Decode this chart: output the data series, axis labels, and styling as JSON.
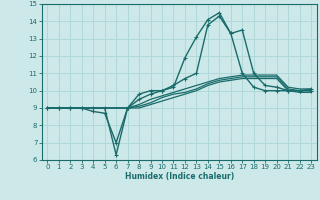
{
  "xlabel": "Humidex (Indice chaleur)",
  "xlim": [
    -0.5,
    23.5
  ],
  "ylim": [
    6,
    15
  ],
  "xticks": [
    0,
    1,
    2,
    3,
    4,
    5,
    6,
    7,
    8,
    9,
    10,
    11,
    12,
    13,
    14,
    15,
    16,
    17,
    18,
    19,
    20,
    21,
    22,
    23
  ],
  "yticks": [
    6,
    7,
    8,
    9,
    10,
    11,
    12,
    13,
    14,
    15
  ],
  "bg_color": "#cde8e8",
  "grid_color": "#b0d8d8",
  "line_color": "#1a6b6b",
  "lines": [
    {
      "x": [
        0,
        1,
        2,
        3,
        4,
        5,
        6,
        7,
        8,
        9,
        10,
        11,
        12,
        13,
        14,
        15,
        16,
        17,
        18,
        19,
        20,
        21,
        22,
        23
      ],
      "y": [
        9,
        9,
        9,
        9,
        9,
        9,
        6.3,
        9,
        9.8,
        10,
        10,
        10.3,
        10.7,
        11,
        13.8,
        14.3,
        13.3,
        13.5,
        11,
        10.3,
        10.2,
        10,
        10,
        10.1
      ],
      "marker": "+",
      "lw": 1.0
    },
    {
      "x": [
        0,
        1,
        2,
        3,
        4,
        5,
        6,
        7,
        8,
        9,
        10,
        11,
        12,
        13,
        14,
        15,
        16,
        17,
        18,
        19,
        20,
        21,
        22,
        23
      ],
      "y": [
        9,
        9,
        9,
        9,
        8.8,
        8.7,
        7,
        9,
        9.5,
        9.8,
        10,
        10.2,
        11.9,
        13.1,
        14.1,
        14.5,
        13.3,
        11,
        10.2,
        10,
        10,
        10,
        10,
        10
      ],
      "marker": "+",
      "lw": 1.0
    },
    {
      "x": [
        0,
        1,
        2,
        3,
        4,
        5,
        6,
        7,
        8,
        9,
        10,
        11,
        12,
        13,
        14,
        15,
        16,
        17,
        18,
        19,
        20,
        21,
        22,
        23
      ],
      "y": [
        9,
        9,
        9,
        9,
        9,
        9,
        9,
        9,
        9.2,
        9.5,
        9.7,
        9.9,
        10.1,
        10.3,
        10.5,
        10.7,
        10.8,
        10.9,
        10.9,
        10.9,
        10.9,
        10.2,
        10.1,
        10.1
      ],
      "marker": null,
      "lw": 0.9
    },
    {
      "x": [
        0,
        1,
        2,
        3,
        4,
        5,
        6,
        7,
        8,
        9,
        10,
        11,
        12,
        13,
        14,
        15,
        16,
        17,
        18,
        19,
        20,
        21,
        22,
        23
      ],
      "y": [
        9,
        9,
        9,
        9,
        9,
        9,
        9,
        9,
        9.1,
        9.3,
        9.6,
        9.8,
        9.9,
        10.1,
        10.4,
        10.6,
        10.7,
        10.8,
        10.8,
        10.8,
        10.8,
        10.1,
        10.0,
        10.0
      ],
      "marker": null,
      "lw": 0.9
    },
    {
      "x": [
        0,
        1,
        2,
        3,
        4,
        5,
        6,
        7,
        8,
        9,
        10,
        11,
        12,
        13,
        14,
        15,
        16,
        17,
        18,
        19,
        20,
        21,
        22,
        23
      ],
      "y": [
        9,
        9,
        9,
        9,
        9,
        9,
        9,
        9,
        9.0,
        9.2,
        9.4,
        9.6,
        9.8,
        10.0,
        10.3,
        10.5,
        10.6,
        10.7,
        10.7,
        10.7,
        10.7,
        10.0,
        9.9,
        9.9
      ],
      "marker": null,
      "lw": 0.9
    }
  ]
}
